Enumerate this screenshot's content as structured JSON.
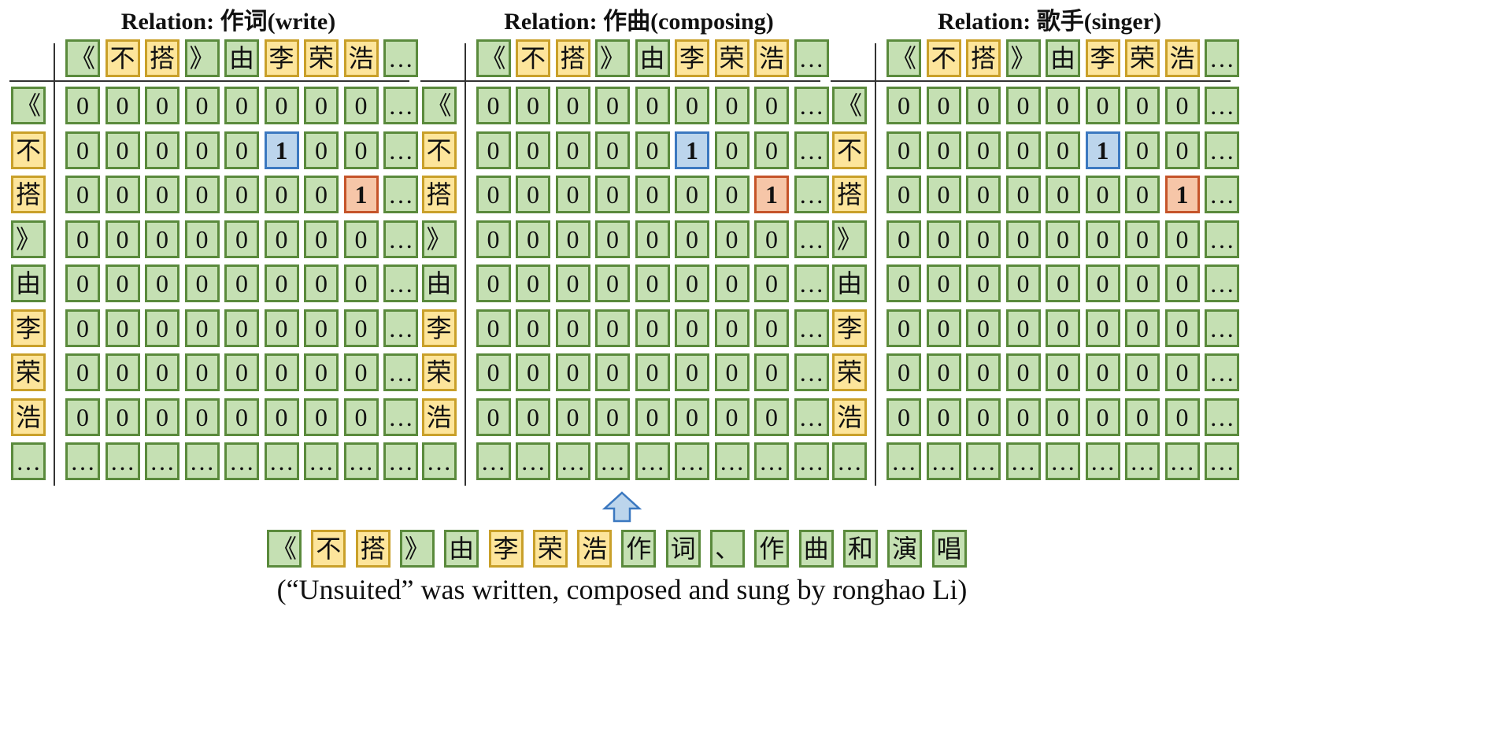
{
  "tokens": [
    "《",
    "不",
    "搭",
    "》",
    "由",
    "李",
    "荣",
    "浩",
    "作",
    "词",
    "、",
    "作",
    "曲",
    "和",
    "演",
    "唱"
  ],
  "entity_token_indices": [
    1,
    2,
    5,
    6,
    7
  ],
  "matrix_tokens": [
    "《",
    "不",
    "搭",
    "》",
    "由",
    "李",
    "荣",
    "浩"
  ],
  "ellipsis": "…",
  "zero": "0",
  "one": "1",
  "relations": [
    {
      "title": "Relation: 作词(write)",
      "head_cell": {
        "row": 1,
        "col": 5
      },
      "tail_cell": {
        "row": 2,
        "col": 7
      }
    },
    {
      "title": "Relation: 作曲(composing)",
      "head_cell": {
        "row": 1,
        "col": 5
      },
      "tail_cell": {
        "row": 2,
        "col": 7
      }
    },
    {
      "title": "Relation: 歌手(singer)",
      "head_cell": {
        "row": 1,
        "col": 5
      },
      "tail_cell": {
        "row": 2,
        "col": 7
      }
    }
  ],
  "caption": "(“Unsuited” was written, composed and sung by ronghao Li)",
  "colors": {
    "token": "#c5e0b3",
    "entity": "#fde59b",
    "head_tag": "#bcd5ec",
    "tail_tag": "#f6c6a8",
    "arrow": "#bcd5ec"
  },
  "icons": {
    "arrow": "up-arrow-icon"
  }
}
